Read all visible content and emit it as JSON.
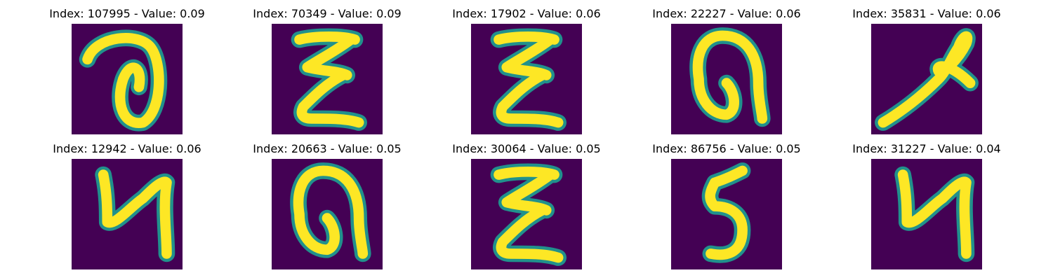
{
  "colors": {
    "background": "#440154",
    "stroke_edge": "#21918c",
    "stroke_core": "#fde725"
  },
  "panels": [
    {
      "index": "107995",
      "value": "0.09",
      "title": "Index: 107995 - Value: 0.09",
      "glyph": "hook-loop-digit"
    },
    {
      "index": "70349",
      "value": "0.09",
      "title": "Index: 70349 - Value: 0.09",
      "glyph": "epsilon-like-character"
    },
    {
      "index": "17902",
      "value": "0.06",
      "title": "Index: 17902 - Value: 0.06",
      "glyph": "epsilon-like-character"
    },
    {
      "index": "22227",
      "value": "0.06",
      "title": "Index: 22227 - Value: 0.06",
      "glyph": "arch-character"
    },
    {
      "index": "35831",
      "value": "0.06",
      "title": "Index: 35831 - Value: 0.06",
      "glyph": "slanted-loop-character"
    },
    {
      "index": "12942",
      "value": "0.06",
      "title": "Index: 12942 - Value: 0.06",
      "glyph": "u-hook-character"
    },
    {
      "index": "20663",
      "value": "0.05",
      "title": "Index: 20663 - Value: 0.05",
      "glyph": "arch-character"
    },
    {
      "index": "30064",
      "value": "0.05",
      "title": "Index: 30064 - Value: 0.05",
      "glyph": "epsilon-like-character"
    },
    {
      "index": "86756",
      "value": "0.05",
      "title": "Index: 86756 - Value: 0.05",
      "glyph": "five-like-character"
    },
    {
      "index": "31227",
      "value": "0.04",
      "title": "Index: 31227 - Value: 0.04",
      "glyph": "u-hook-character"
    }
  ]
}
